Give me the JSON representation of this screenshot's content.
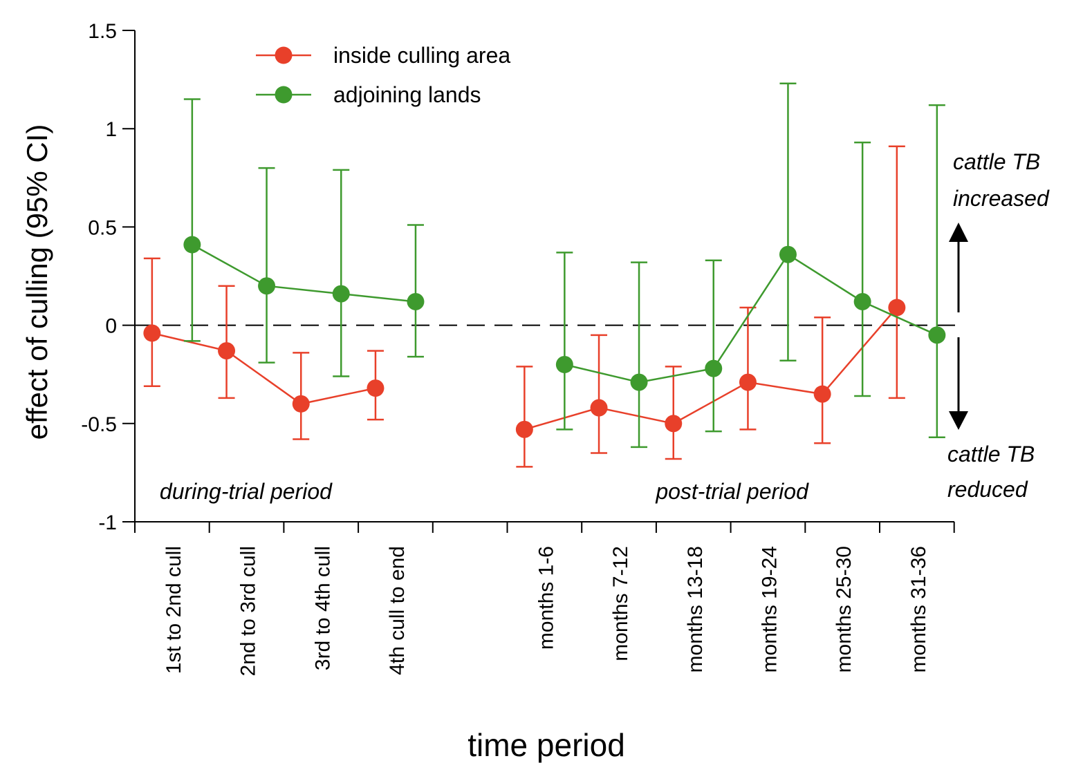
{
  "chart_data": {
    "type": "line",
    "xlabel": "time period",
    "ylabel": "effect of culling (95% CI)",
    "ylim": [
      -1,
      1.5
    ],
    "yticks": [
      1.5,
      1,
      0.5,
      0,
      -0.5,
      -1
    ],
    "yticklabels": [
      "1.5",
      "1",
      "0.5",
      "0",
      "-0.5",
      "-1"
    ],
    "reference_line": 0,
    "grid": false,
    "legend_position": "top-left",
    "groups": [
      {
        "label": "during-trial period",
        "categories": [
          "1st to 2nd cull",
          "2nd to 3rd cull",
          "3rd to 4th cull",
          "4th cull to end"
        ]
      },
      {
        "label": "post-trial period",
        "categories": [
          "months 1-6",
          "months 7-12",
          "months 13-18",
          "months 19-24",
          "months 25-30",
          "months 31-36"
        ]
      }
    ],
    "series": [
      {
        "name": "inside culling area",
        "color": "#e8402a",
        "values": [
          [
            -0.04,
            -0.13,
            -0.4,
            -0.32
          ],
          [
            -0.53,
            -0.42,
            -0.5,
            -0.29,
            -0.35,
            0.09
          ]
        ],
        "ci_low": [
          [
            -0.31,
            -0.37,
            -0.58,
            -0.48
          ],
          [
            -0.72,
            -0.65,
            -0.68,
            -0.53,
            -0.6,
            -0.37
          ]
        ],
        "ci_high": [
          [
            0.34,
            0.2,
            -0.14,
            -0.13
          ],
          [
            -0.21,
            -0.05,
            -0.21,
            0.09,
            0.04,
            0.91
          ]
        ]
      },
      {
        "name": "adjoining lands",
        "color": "#3e9a2e",
        "values": [
          [
            0.41,
            0.2,
            0.16,
            0.12
          ],
          [
            -0.2,
            -0.29,
            -0.22,
            0.36,
            0.12,
            -0.05
          ]
        ],
        "ci_low": [
          [
            -0.08,
            -0.19,
            -0.26,
            -0.16
          ],
          [
            -0.53,
            -0.62,
            -0.54,
            -0.18,
            -0.36,
            -0.57
          ]
        ],
        "ci_high": [
          [
            1.15,
            0.8,
            0.79,
            0.51
          ],
          [
            0.37,
            0.32,
            0.33,
            1.23,
            0.93,
            1.12
          ]
        ]
      }
    ],
    "annotations": {
      "increased": [
        "cattle TB",
        "increased"
      ],
      "reduced": [
        "cattle TB",
        "reduced"
      ]
    }
  }
}
